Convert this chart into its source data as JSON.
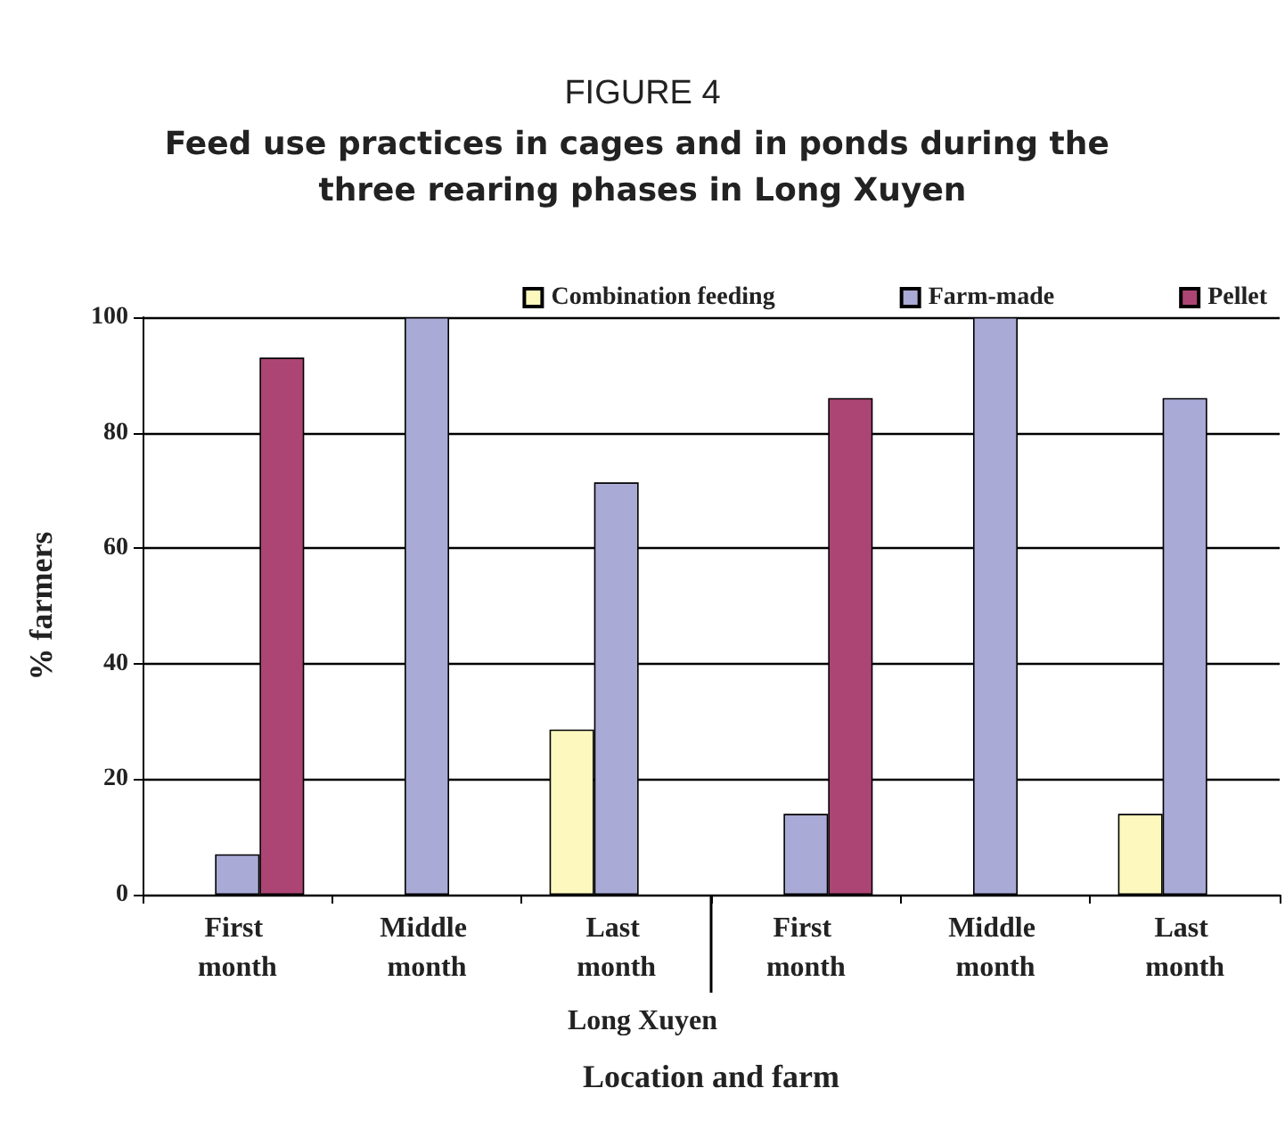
{
  "chart_data": {
    "type": "bar",
    "title": "FIGURE 4",
    "subtitle": "Feed use practices in cages and in ponds during the three rearing phases in Long Xuyen",
    "categories": [
      "First month",
      "Middle month",
      "Last month",
      "First month",
      "Middle month",
      "Last month"
    ],
    "series": [
      {
        "name": "Combination feeding",
        "color": "#fdf8bd",
        "values": [
          null,
          null,
          28.6,
          null,
          null,
          14
        ]
      },
      {
        "name": "Farm-made",
        "color": "#a9aad6",
        "values": [
          7,
          100,
          71.4,
          14,
          100,
          86
        ]
      },
      {
        "name": "Pellet",
        "color": "#ad4574",
        "values": [
          93,
          null,
          null,
          86,
          null,
          null
        ]
      }
    ],
    "ylabel": "% farmers",
    "xlabel": "Location and farm",
    "annotations": [
      "Long Xuyen"
    ],
    "ylim": [
      0,
      100
    ],
    "yticks": [
      0,
      20,
      40,
      60,
      80,
      100
    ],
    "grid": "y",
    "legend": "top"
  }
}
